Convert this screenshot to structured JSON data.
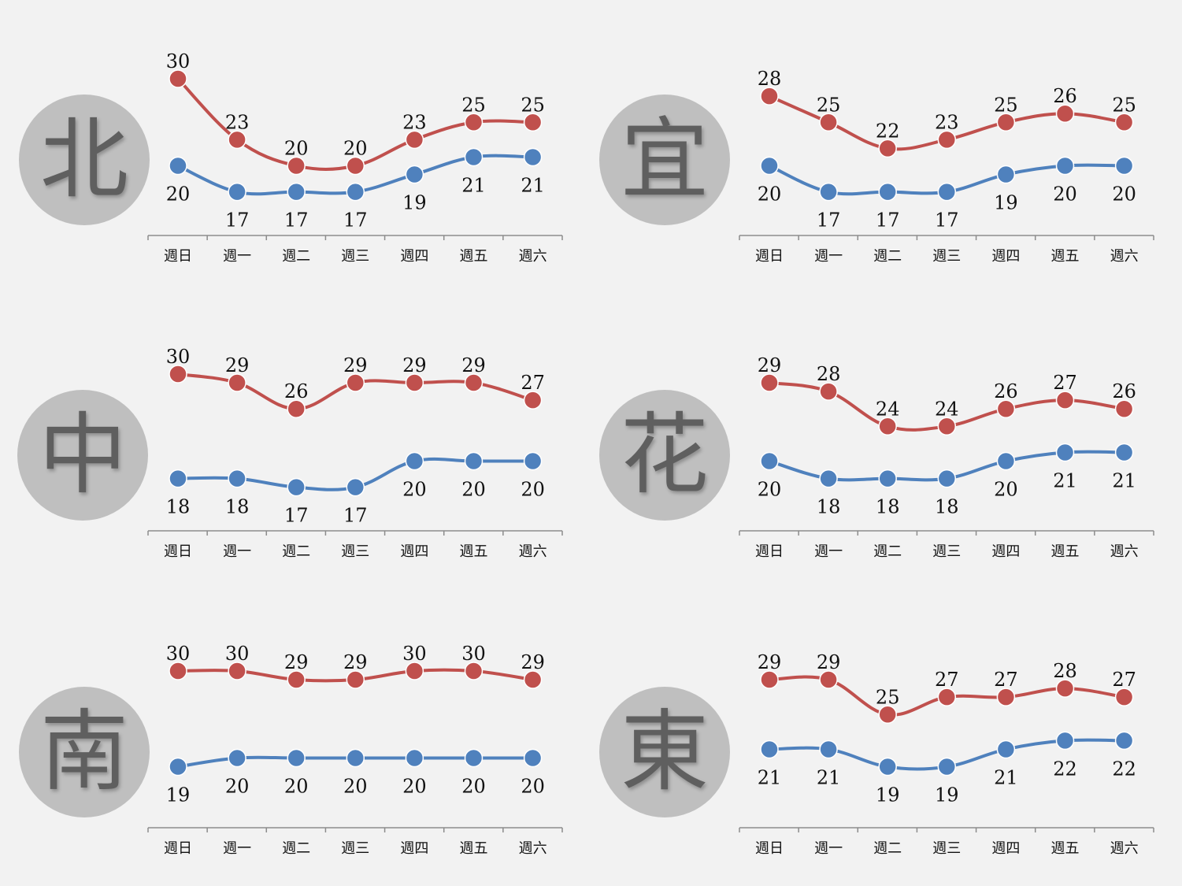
{
  "chart_data": [
    {
      "type": "line",
      "city": "北",
      "categories": [
        "週日",
        "週一",
        "週二",
        "週三",
        "週四",
        "週五",
        "週六"
      ],
      "series": [
        {
          "key": "high",
          "color": "#c0504d",
          "values": [
            30,
            23,
            20,
            20,
            23,
            25,
            25
          ]
        },
        {
          "key": "low",
          "color": "#4f81bd",
          "values": [
            20,
            17,
            17,
            17,
            19,
            21,
            21
          ]
        }
      ]
    },
    {
      "type": "line",
      "city": "宜",
      "categories": [
        "週日",
        "週一",
        "週二",
        "週三",
        "週四",
        "週五",
        "週六"
      ],
      "series": [
        {
          "key": "high",
          "color": "#c0504d",
          "values": [
            28,
            25,
            22,
            23,
            25,
            26,
            25
          ]
        },
        {
          "key": "low",
          "color": "#4f81bd",
          "values": [
            20,
            17,
            17,
            17,
            19,
            20,
            20
          ]
        }
      ]
    },
    {
      "type": "line",
      "city": "中",
      "categories": [
        "週日",
        "週一",
        "週二",
        "週三",
        "週四",
        "週五",
        "週六"
      ],
      "series": [
        {
          "key": "high",
          "color": "#c0504d",
          "values": [
            30,
            29,
            26,
            29,
            29,
            29,
            27
          ]
        },
        {
          "key": "low",
          "color": "#4f81bd",
          "values": [
            18,
            18,
            17,
            17,
            20,
            20,
            20
          ]
        }
      ]
    },
    {
      "type": "line",
      "city": "花",
      "categories": [
        "週日",
        "週一",
        "週二",
        "週三",
        "週四",
        "週五",
        "週六"
      ],
      "series": [
        {
          "key": "high",
          "color": "#c0504d",
          "values": [
            29,
            28,
            24,
            24,
            26,
            27,
            26
          ]
        },
        {
          "key": "low",
          "color": "#4f81bd",
          "values": [
            20,
            18,
            18,
            18,
            20,
            21,
            21
          ]
        }
      ]
    },
    {
      "type": "line",
      "city": "南",
      "categories": [
        "週日",
        "週一",
        "週二",
        "週三",
        "週四",
        "週五",
        "週六"
      ],
      "series": [
        {
          "key": "high",
          "color": "#c0504d",
          "values": [
            30,
            30,
            29,
            29,
            30,
            30,
            29
          ]
        },
        {
          "key": "low",
          "color": "#4f81bd",
          "values": [
            19,
            20,
            20,
            20,
            20,
            20,
            20
          ]
        }
      ]
    },
    {
      "type": "line",
      "city": "東",
      "categories": [
        "週日",
        "週一",
        "週二",
        "週三",
        "週四",
        "週五",
        "週六"
      ],
      "series": [
        {
          "key": "high",
          "color": "#c0504d",
          "values": [
            29,
            29,
            25,
            27,
            27,
            28,
            27
          ]
        },
        {
          "key": "low",
          "color": "#4f81bd",
          "values": [
            21,
            21,
            19,
            19,
            21,
            22,
            22
          ]
        }
      ]
    }
  ]
}
